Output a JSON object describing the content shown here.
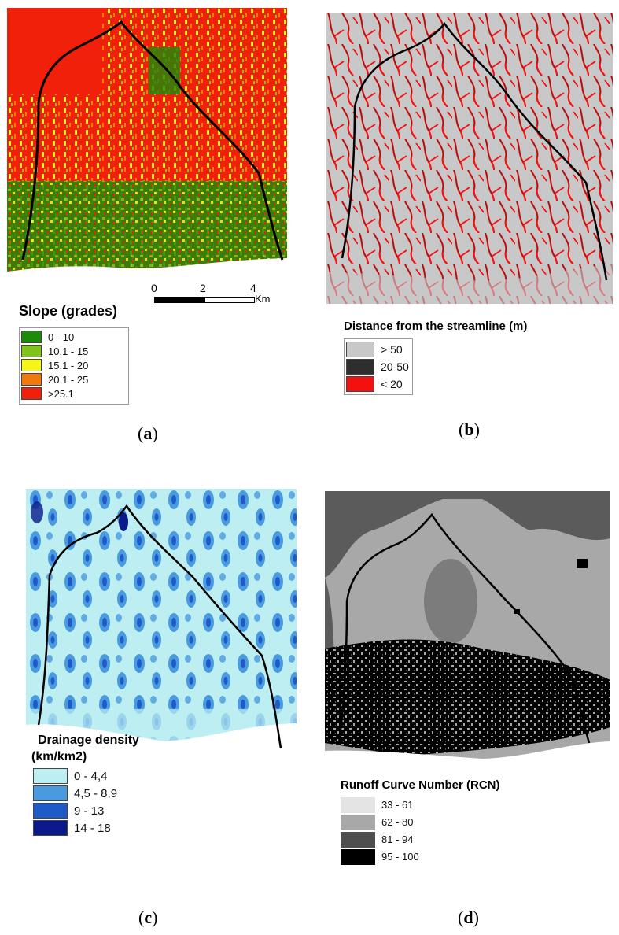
{
  "panels": {
    "a": {
      "caption_open": "(",
      "caption_letter": "a",
      "caption_close": ")",
      "legend_title": "Slope (grades)",
      "classes": [
        {
          "label": "0 - 10",
          "color": "#1e8a0a"
        },
        {
          "label": "10.1 - 15",
          "color": "#7fc21a"
        },
        {
          "label": "15.1 - 20",
          "color": "#f5f51a"
        },
        {
          "label": "20.1 - 25",
          "color": "#f07a10"
        },
        {
          "label": ">25.1",
          "color": "#f0200a"
        }
      ],
      "scale": {
        "ticks": [
          "0",
          "2",
          "4"
        ],
        "unit": "Km"
      }
    },
    "b": {
      "caption_open": "(",
      "caption_letter": "b",
      "caption_close": ")",
      "legend_title": "Distance from the streamline (m)",
      "classes": [
        {
          "label": "> 50",
          "color": "#c8c8c8"
        },
        {
          "label": "20-50",
          "color": "#2e2e2e"
        },
        {
          "label": "< 20",
          "color": "#f51010"
        }
      ]
    },
    "c": {
      "caption_open": "(",
      "caption_letter": "c",
      "caption_close": ")",
      "legend_title_line1": "Drainage density",
      "legend_title_line2": "(km/km2)",
      "classes": [
        {
          "label": "0 - 4,4",
          "color": "#bdeef2"
        },
        {
          "label": "4,5 - 8,9",
          "color": "#4a9ae0"
        },
        {
          "label": "9 - 13",
          "color": "#1e5ac8"
        },
        {
          "label": "14 - 18",
          "color": "#0a1a8a"
        }
      ]
    },
    "d": {
      "caption_open": "(",
      "caption_letter": "d",
      "caption_close": ")",
      "legend_title": "Runoff Curve Number (RCN)",
      "classes": [
        {
          "label": "33 - 61",
          "color": "#e4e4e4"
        },
        {
          "label": "62 - 80",
          "color": "#a8a8a8"
        },
        {
          "label": "81 - 94",
          "color": "#4e4e4e"
        },
        {
          "label": "95 - 100",
          "color": "#000000"
        }
      ]
    }
  }
}
